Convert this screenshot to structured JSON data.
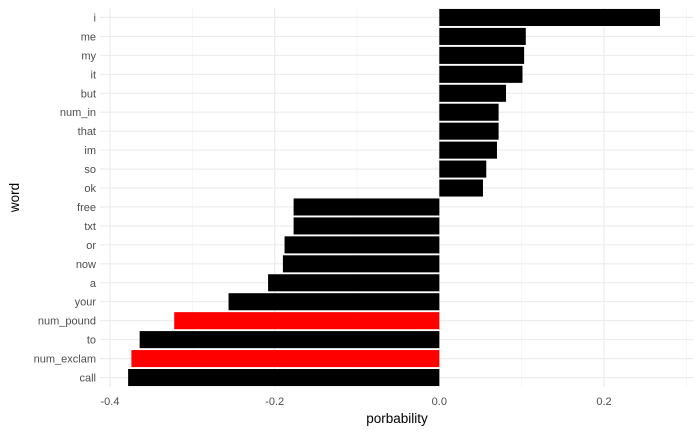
{
  "chart_data": {
    "type": "bar",
    "orientation": "horizontal",
    "xlabel": "porbability",
    "ylabel": "word",
    "xlim": [
      -0.41,
      0.3
    ],
    "x_ticks": [
      -0.4,
      -0.2,
      0.0,
      0.2
    ],
    "x_tick_labels": [
      "-0.4",
      "-0.2",
      "0.0",
      "0.2"
    ],
    "grid": true,
    "categories": [
      "i",
      "me",
      "my",
      "it",
      "but",
      "num_in",
      "that",
      "im",
      "so",
      "ok",
      "free",
      "txt",
      "or",
      "now",
      "a",
      "your",
      "num_pound",
      "to",
      "num_exclam",
      "call"
    ],
    "values": [
      0.268,
      0.105,
      0.103,
      0.101,
      0.081,
      0.072,
      0.072,
      0.07,
      0.057,
      0.053,
      -0.177,
      -0.177,
      -0.188,
      -0.19,
      -0.208,
      -0.256,
      -0.322,
      -0.364,
      -0.374,
      -0.378
    ],
    "bar_colors": [
      "#000000",
      "#000000",
      "#000000",
      "#000000",
      "#000000",
      "#000000",
      "#000000",
      "#000000",
      "#000000",
      "#000000",
      "#000000",
      "#000000",
      "#000000",
      "#000000",
      "#000000",
      "#000000",
      "#ff0000",
      "#000000",
      "#ff0000",
      "#000000"
    ]
  }
}
